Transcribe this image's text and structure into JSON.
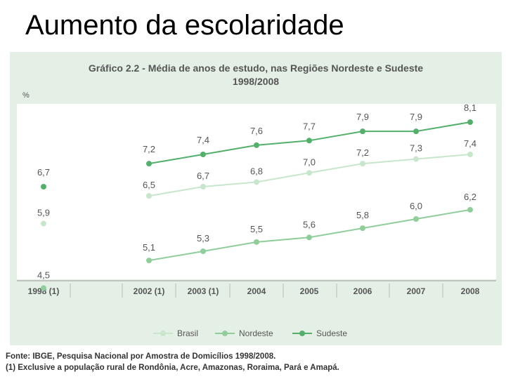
{
  "slide": {
    "title": "Aumento da escolaridade"
  },
  "colors": {
    "Brasil": "#c7e6cb",
    "Nordeste": "#8fce9a",
    "Sudeste": "#52b06a",
    "panel": "#e4efe5"
  },
  "chart_data": {
    "type": "line",
    "title": "Gráfico 2.2 - Média de anos de estudo, nas Regiões Nordeste e Sudeste",
    "subtitle": "1998/2008",
    "ylabel": "%",
    "xlabel": "",
    "categories": [
      "1998 (1)",
      "2002 (1)",
      "2003 (1)",
      "2004",
      "2005",
      "2006",
      "2007",
      "2008"
    ],
    "ylim": [
      4,
      8.5
    ],
    "legend_position": "bottom",
    "series": [
      {
        "name": "Brasil",
        "values": [
          5.9,
          6.5,
          6.7,
          6.8,
          7.0,
          7.2,
          7.3,
          7.4
        ],
        "labels": [
          "5,9",
          "6,5",
          "6,7",
          "6,8",
          "7,0",
          "7,2",
          "7,3",
          "7,4"
        ]
      },
      {
        "name": "Nordeste",
        "values": [
          4.5,
          5.1,
          5.3,
          5.5,
          5.6,
          5.8,
          6.0,
          6.2
        ],
        "labels": [
          "4,5",
          "5,1",
          "5,3",
          "5,5",
          "5,6",
          "5,8",
          "6,0",
          "6,2"
        ]
      },
      {
        "name": "Sudeste",
        "values": [
          6.7,
          7.2,
          7.4,
          7.6,
          7.7,
          7.9,
          7.9,
          8.1
        ],
        "labels": [
          "6,7",
          "7,2",
          "7,4",
          "7,6",
          "7,7",
          "7,9",
          "7,9",
          "8,1"
        ]
      }
    ]
  },
  "footer": {
    "source": "Fonte: IBGE, Pesquisa Nacional por Amostra de Domicílios 1998/2008.",
    "note": "(1) Exclusive a população rural de Rondônia, Acre, Amazonas, Roraima, Pará e Amapá."
  }
}
